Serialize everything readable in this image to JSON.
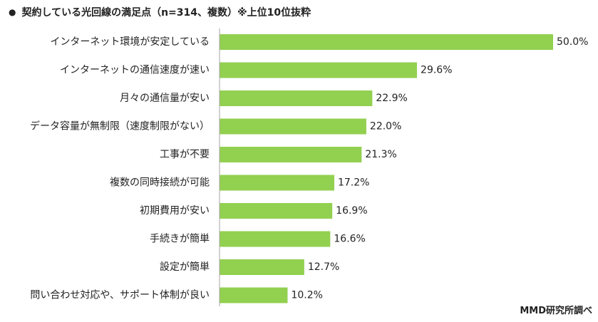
{
  "title": {
    "bullet": "●",
    "text": "契約している光回線の満足点（n=314、複数）※上位10位抜粋"
  },
  "credit": "MMD研究所調べ",
  "colors": {
    "bar": "#92d050",
    "axis": "#a6a6a6",
    "text": "#222222"
  },
  "chart_data": {
    "type": "bar",
    "orientation": "horizontal",
    "categories": [
      "インターネット環境が安定している",
      "インターネットの通信速度が速い",
      "月々の通信量が安い",
      "データ容量が無制限（速度制限がない）",
      "工事が不要",
      "複数の同時接続が可能",
      "初期費用が安い",
      "手続きが簡単",
      "設定が簡単",
      "問い合わせ対応や、サポート体制が良い"
    ],
    "values": [
      50.0,
      29.6,
      22.9,
      22.0,
      21.3,
      17.2,
      16.9,
      16.6,
      12.7,
      10.2
    ],
    "value_labels": [
      "50.0%",
      "29.6%",
      "22.9%",
      "22.0%",
      "21.3%",
      "17.2%",
      "16.9%",
      "16.6%",
      "12.7%",
      "10.2%"
    ],
    "xlim": [
      0,
      50
    ],
    "grid": false,
    "legend": "none"
  }
}
